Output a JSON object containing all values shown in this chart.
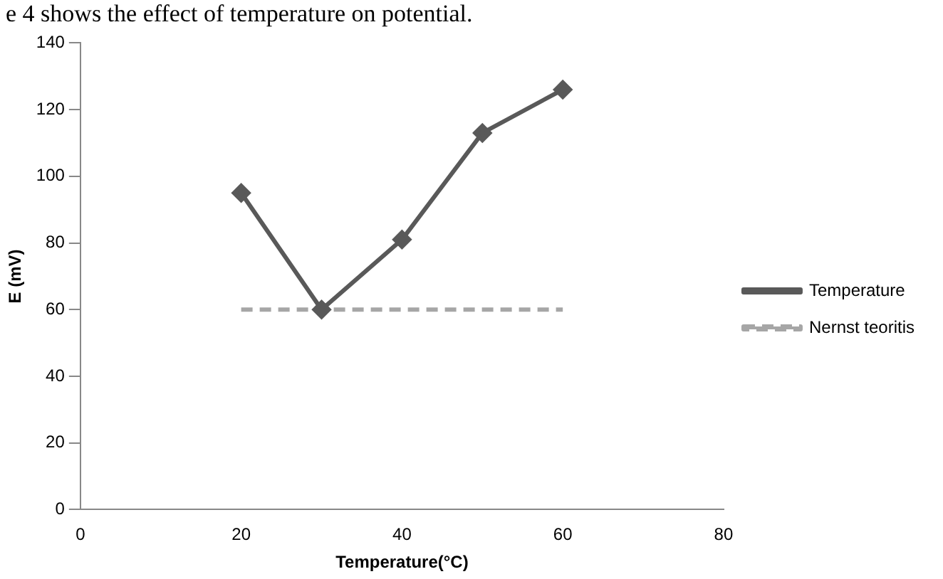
{
  "chart_data": {
    "type": "line",
    "xlabel": "Temperature(°C)",
    "ylabel": "E (mV)",
    "annotations": [
      "e 4 shows the effect of temperature on potential."
    ],
    "x": [
      20,
      30,
      40,
      50,
      60
    ],
    "series": [
      {
        "name": "Temperature",
        "color": "#595959",
        "values": [
          95,
          60,
          81,
          113,
          126
        ],
        "marker": "diamond",
        "line_style": "solid"
      },
      {
        "name": "Nernst teoritis",
        "color": "#a6a6a6",
        "values": [
          60,
          60,
          60,
          60,
          60
        ],
        "marker": "none",
        "line_style": "dashed"
      }
    ],
    "xlim": [
      0,
      80
    ],
    "xticks": [
      0,
      20,
      40,
      60,
      80
    ],
    "ylim": [
      0,
      140
    ],
    "yticks": [
      0,
      20,
      40,
      60,
      80,
      100,
      120,
      140
    ],
    "grid": false,
    "legend": "right"
  }
}
